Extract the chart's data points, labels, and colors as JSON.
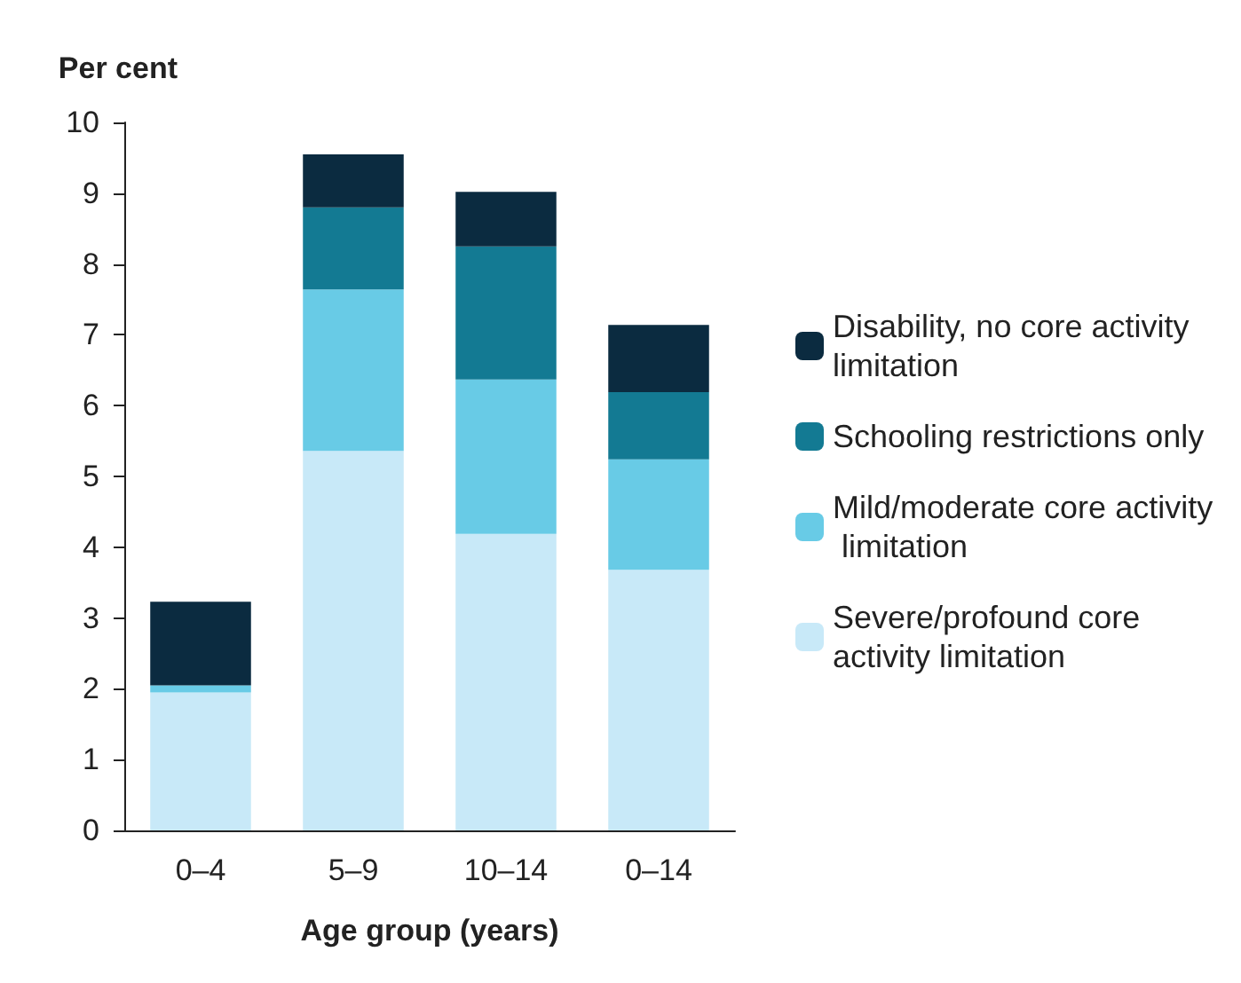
{
  "chart_data": {
    "type": "bar",
    "stacked": true,
    "ylabel": "Per cent",
    "xlabel": "Age group (years)",
    "categories": [
      "0–4",
      "5–9",
      "10–14",
      "0–14"
    ],
    "series": [
      {
        "name": "Severe/profound core activity limitation",
        "color": "#c8e9f8",
        "values": [
          1.95,
          5.36,
          4.19,
          3.68
        ]
      },
      {
        "name": "Mild/moderate core activity limitation",
        "color": "#68cbe6",
        "values": [
          0.1,
          2.28,
          2.18,
          1.56
        ]
      },
      {
        "name": "Schooling restrictions only",
        "color": "#137a93",
        "values": [
          0,
          1.16,
          1.88,
          0.95
        ]
      },
      {
        "name": "Disability, no core activity limitation",
        "color": "#0b2b40",
        "values": [
          1.18,
          0.75,
          0.77,
          0.95
        ]
      }
    ],
    "ylim": [
      0,
      10
    ],
    "yticks": [
      0,
      1,
      2,
      3,
      4,
      5,
      6,
      7,
      8,
      9,
      10
    ],
    "grid": false,
    "legend": "right"
  }
}
